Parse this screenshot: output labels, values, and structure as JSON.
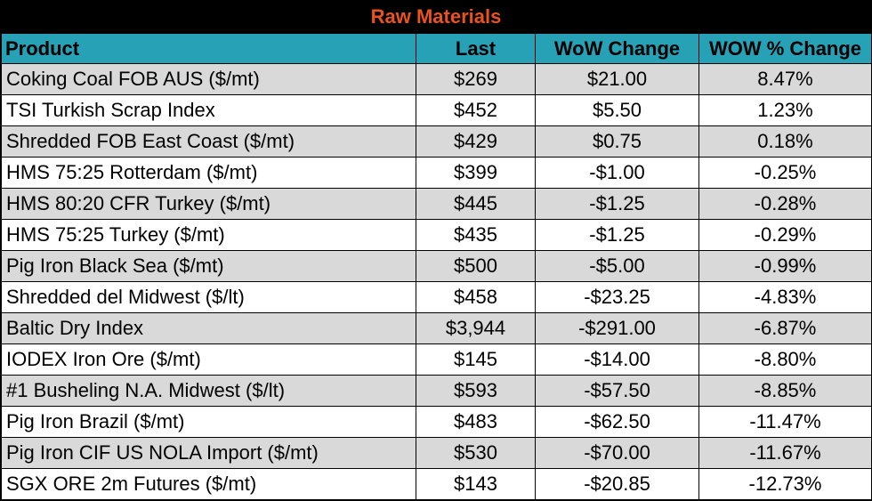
{
  "title": "Raw Materials",
  "colors": {
    "title_bg": "#000000",
    "title_text": "#e8531f",
    "header_bg": "#26a1b5",
    "shade_row": "#d9d9d9"
  },
  "columns": [
    "Product",
    "Last",
    "WoW Change",
    "WOW % Change"
  ],
  "rows": [
    [
      "Coking Coal FOB AUS ($/mt)",
      "$269",
      "$21.00",
      "8.47%"
    ],
    [
      "TSI Turkish Scrap Index",
      "$452",
      "$5.50",
      "1.23%"
    ],
    [
      "Shredded FOB East Coast ($/mt)",
      "$429",
      "$0.75",
      "0.18%"
    ],
    [
      "HMS 75:25 Rotterdam ($/mt)",
      "$399",
      "-$1.00",
      "-0.25%"
    ],
    [
      "HMS 80:20 CFR Turkey ($/mt)",
      "$445",
      "-$1.25",
      "-0.28%"
    ],
    [
      "HMS 75:25 Turkey ($/mt)",
      "$435",
      "-$1.25",
      "-0.29%"
    ],
    [
      "Pig Iron Black Sea ($/mt)",
      "$500",
      "-$5.00",
      "-0.99%"
    ],
    [
      "Shredded del  Midwest ($/lt)",
      "$458",
      "-$23.25",
      "-4.83%"
    ],
    [
      "Baltic Dry Index",
      "$3,944",
      "-$291.00",
      "-6.87%"
    ],
    [
      "IODEX  Iron Ore ($/mt)",
      "$145",
      "-$14.00",
      "-8.80%"
    ],
    [
      "#1 Busheling N.A. Midwest ($/lt)",
      "$593",
      "-$57.50",
      "-8.85%"
    ],
    [
      "Pig Iron Brazil ($/mt)",
      "$483",
      "-$62.50",
      "-11.47%"
    ],
    [
      "Pig Iron CIF US NOLA Import ($/mt)",
      "$530",
      "-$70.00",
      "-11.67%"
    ],
    [
      "SGX ORE 2m Futures ($/mt)",
      "$143",
      "-$20.85",
      "-12.73%"
    ]
  ]
}
